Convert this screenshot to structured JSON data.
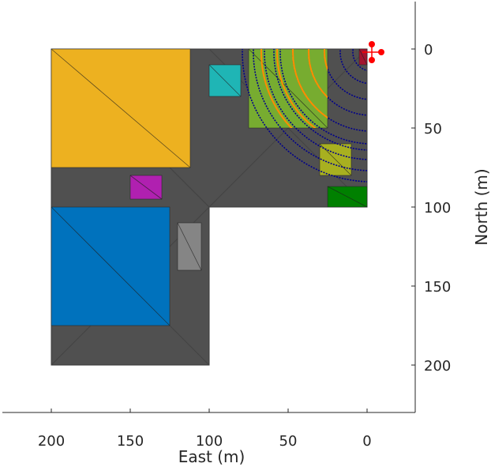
{
  "chart_data": {
    "type": "map",
    "title": "",
    "xlabel": "East (m)",
    "ylabel": "North (m)",
    "xlim": [
      -30,
      230
    ],
    "ylim": [
      -30,
      230
    ],
    "x_reversed": true,
    "y_reversed": true,
    "xticks": [
      200,
      150,
      100,
      50,
      0
    ],
    "yticks": [
      0,
      50,
      100,
      150,
      200
    ],
    "xtick_labels": [
      "200",
      "150",
      "100",
      "50",
      "0"
    ],
    "ytick_labels": [
      "0",
      "50",
      "100",
      "150",
      "200"
    ],
    "grid": false,
    "ground": {
      "color": "#505050",
      "outline_east_north": [
        [
          0,
          0
        ],
        [
          200,
          0
        ],
        [
          200,
          200
        ],
        [
          100,
          200
        ],
        [
          100,
          100
        ],
        [
          0,
          100
        ]
      ]
    },
    "buildings": [
      {
        "name": "",
        "color": "#EDB120",
        "east": [
          112,
          200
        ],
        "north": [
          0,
          75
        ]
      },
      {
        "name": "",
        "color": "#0072BD",
        "east": [
          125,
          200
        ],
        "north": [
          100,
          175
        ]
      },
      {
        "name": "",
        "color": "#1FB5B5",
        "east": [
          80,
          100
        ],
        "north": [
          10,
          30
        ]
      },
      {
        "name": "",
        "color": "#77AC30",
        "east": [
          25,
          75
        ],
        "north": [
          0,
          50
        ]
      },
      {
        "name": "",
        "color": "#A8B020",
        "east": [
          10,
          30
        ],
        "north": [
          60,
          80
        ]
      },
      {
        "name": "",
        "color": "#008000",
        "east": [
          0,
          25
        ],
        "north": [
          87,
          100
        ]
      },
      {
        "name": "",
        "color": "#B020B0",
        "east": [
          130,
          150
        ],
        "north": [
          80,
          95
        ]
      },
      {
        "name": "",
        "color": "#858585",
        "east": [
          105,
          120
        ],
        "north": [
          110,
          140
        ]
      },
      {
        "name": "",
        "color": "#A2142F",
        "east": [
          0,
          5
        ],
        "north": [
          0,
          10
        ]
      }
    ],
    "sensor": {
      "east": -3,
      "north": 2,
      "color": "#FF0000"
    },
    "radar_arcs": {
      "dark_blue": {
        "color": "#00008B",
        "radii": [
          12,
          20,
          30,
          40,
          50,
          58,
          62,
          68,
          75,
          82
        ]
      },
      "orange": {
        "color": "#FF8C00",
        "radii": [
          30,
          40,
          50,
          60,
          70
        ]
      }
    }
  }
}
